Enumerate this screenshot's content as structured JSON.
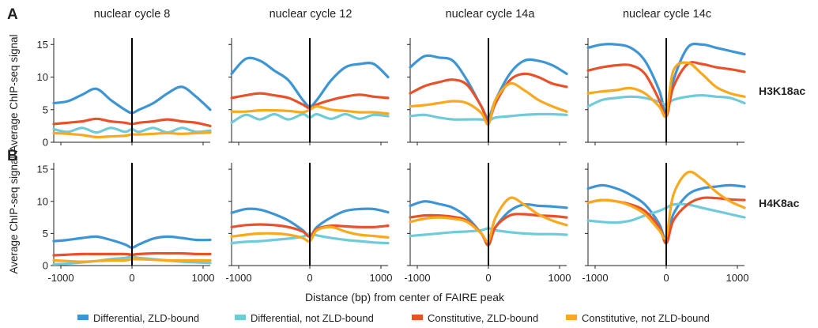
{
  "panel_letters": [
    "A",
    "B"
  ],
  "columns": [
    "nuclear cycle 8",
    "nuclear cycle 12",
    "nuclear cycle 14a",
    "nuclear cycle 14c"
  ],
  "rows": [
    "H3K18ac",
    "H4K8ac"
  ],
  "ylabel": "Average ChIP-seq signal",
  "xlabel": "Distance (bp) from center of FAIRE peak",
  "colors": {
    "differential_zld": "#3d95d4",
    "differential_not_zld": "#6fcbd9",
    "constitutive_zld": "#e8512a",
    "constitutive_not_zld": "#f9a81f",
    "axis": "#222222",
    "center_line": "#000000"
  },
  "chart_data": {
    "type": "line",
    "layout": "grid 2 rows x 4 columns, shared axes",
    "x_ticks": [
      -1000,
      0,
      1000
    ],
    "xlim": [
      -1100,
      1100
    ],
    "y_ticks": [
      0,
      5,
      10,
      15
    ],
    "ylim": [
      0,
      16
    ],
    "legend": "bottom",
    "grid": false,
    "vertical_marker_at_x": 0,
    "series_names": [
      "Differential, ZLD-bound",
      "Differential, not ZLD-bound",
      "Constitutive, ZLD-bound",
      "Constitutive, not ZLD-bound"
    ],
    "x": [
      -1100,
      -900,
      -700,
      -500,
      -300,
      -100,
      0,
      100,
      300,
      500,
      700,
      900,
      1100
    ],
    "panels": [
      {
        "row": "H3K18ac",
        "column": "nuclear cycle 8",
        "series": [
          {
            "name": "Differential, ZLD-bound",
            "values": [
              6,
              6.3,
              7.3,
              8.2,
              6.5,
              5,
              4.5,
              5,
              6,
              7.5,
              8.5,
              7,
              5
            ]
          },
          {
            "name": "Differential, not ZLD-bound",
            "values": [
              2,
              1.6,
              2.2,
              1.5,
              2.2,
              1.6,
              2,
              1.6,
              2.2,
              1.5,
              2.2,
              1.6,
              1.8
            ]
          },
          {
            "name": "Constitutive, ZLD-bound",
            "values": [
              2.8,
              3,
              3.2,
              3.6,
              3.2,
              3,
              2.8,
              3,
              3.2,
              3.5,
              3.2,
              3,
              2.5
            ]
          },
          {
            "name": "Constitutive, not ZLD-bound",
            "values": [
              1.4,
              1.3,
              1.1,
              0.8,
              0.9,
              1,
              1.2,
              1.2,
              1.3,
              1.4,
              1.3,
              1.4,
              1.5
            ]
          }
        ]
      },
      {
        "row": "H3K18ac",
        "column": "nuclear cycle 12",
        "series": [
          {
            "name": "Differential, ZLD-bound",
            "values": [
              10.5,
              12.8,
              12.5,
              11,
              9.5,
              6.5,
              5.5,
              6.5,
              9.5,
              11.5,
              12,
              12,
              10
            ]
          },
          {
            "name": "Differential, not ZLD-bound",
            "values": [
              3,
              4.2,
              3.5,
              4.3,
              3.5,
              4.3,
              3.8,
              4.3,
              3.6,
              4.3,
              3.6,
              4.2,
              4
            ]
          },
          {
            "name": "Constitutive, ZLD-bound",
            "values": [
              6.8,
              7.2,
              7.5,
              7.2,
              6.8,
              5.8,
              5.2,
              5.8,
              6.5,
              7,
              7.3,
              7,
              6.8
            ]
          },
          {
            "name": "Constitutive, not ZLD-bound",
            "values": [
              4.7,
              4.7,
              4.9,
              4.9,
              4.8,
              4.6,
              5,
              5.5,
              5,
              4.8,
              4.6,
              4.6,
              4.4
            ]
          }
        ]
      },
      {
        "row": "H3K18ac",
        "column": "nuclear cycle 14a",
        "series": [
          {
            "name": "Differential, ZLD-bound",
            "values": [
              11.5,
              13.2,
              13,
              12.5,
              9.5,
              5.5,
              3.8,
              6.5,
              10.5,
              12.5,
              12.5,
              11.8,
              10.5
            ]
          },
          {
            "name": "Differential, not ZLD-bound",
            "values": [
              4,
              4.2,
              3.8,
              3.5,
              3.5,
              3.5,
              3.3,
              3.8,
              4,
              4.2,
              4.3,
              4.3,
              4.2
            ]
          },
          {
            "name": "Constitutive, ZLD-bound",
            "values": [
              7.5,
              8.6,
              9.2,
              9.6,
              8.8,
              5.5,
              3.2,
              6,
              9.5,
              10.5,
              10,
              9,
              8.5
            ]
          },
          {
            "name": "Constitutive, not ZLD-bound",
            "values": [
              5.5,
              5.7,
              6,
              6.3,
              6,
              4.5,
              2.8,
              6.5,
              9,
              8,
              6.5,
              5.5,
              4.7
            ]
          }
        ]
      },
      {
        "row": "H3K18ac",
        "column": "nuclear cycle 14c",
        "series": [
          {
            "name": "Differential, ZLD-bound",
            "values": [
              14.5,
              15,
              15,
              14.5,
              12.5,
              8,
              4.5,
              9.5,
              14.5,
              15,
              14.5,
              14,
              13.5
            ]
          },
          {
            "name": "Differential, not ZLD-bound",
            "values": [
              5.5,
              6.5,
              6.8,
              7,
              6.8,
              6.2,
              5.8,
              6.5,
              7,
              7.2,
              7,
              6.8,
              6
            ]
          },
          {
            "name": "Constitutive, ZLD-bound",
            "values": [
              11,
              11.5,
              11.8,
              11.8,
              10.5,
              6.5,
              4,
              8.5,
              12,
              12,
              11.5,
              11.2,
              10.8
            ]
          },
          {
            "name": "Constitutive, not ZLD-bound",
            "values": [
              7.5,
              7.8,
              8,
              8.3,
              7.5,
              5.5,
              4.2,
              11,
              12.2,
              10.5,
              8.5,
              7.5,
              7
            ]
          }
        ]
      },
      {
        "row": "H4K8ac",
        "column": "nuclear cycle 8",
        "series": [
          {
            "name": "Differential, ZLD-bound",
            "values": [
              3.8,
              4,
              4.3,
              4.5,
              4,
              3.3,
              2.8,
              3.3,
              4.2,
              4.5,
              4.3,
              4,
              4
            ]
          },
          {
            "name": "Differential, not ZLD-bound",
            "values": [
              0.2,
              0.3,
              0.5,
              0.7,
              1,
              1.2,
              1.4,
              1.2,
              1,
              0.8,
              0.6,
              0.5,
              0.4
            ]
          },
          {
            "name": "Constitutive, ZLD-bound",
            "values": [
              1.6,
              1.7,
              1.8,
              1.8,
              1.8,
              1.8,
              1.7,
              1.8,
              1.9,
              1.9,
              1.9,
              1.8,
              1.8
            ]
          },
          {
            "name": "Constitutive, not ZLD-bound",
            "values": [
              0.8,
              0.7,
              0.6,
              0.7,
              0.8,
              0.8,
              1,
              1,
              0.9,
              0.8,
              0.8,
              0.8,
              0.8
            ]
          }
        ]
      },
      {
        "row": "H4K8ac",
        "column": "nuclear cycle 12",
        "series": [
          {
            "name": "Differential, ZLD-bound",
            "values": [
              8.2,
              8.8,
              8.7,
              8,
              7,
              5.5,
              4.5,
              6,
              7.5,
              8.5,
              8.8,
              8.8,
              8.3
            ]
          },
          {
            "name": "Differential, not ZLD-bound",
            "values": [
              3.5,
              3.7,
              3.8,
              4,
              4.2,
              4.5,
              5,
              4.7,
              4.3,
              4,
              3.8,
              3.6,
              3.5
            ]
          },
          {
            "name": "Constitutive, ZLD-bound",
            "values": [
              6,
              6.3,
              6.4,
              6.3,
              6,
              5.3,
              4.5,
              5.7,
              6.2,
              6.1,
              6,
              6,
              6.2
            ]
          },
          {
            "name": "Constitutive, not ZLD-bound",
            "values": [
              4.5,
              4.8,
              5,
              5,
              4.8,
              4.3,
              3.8,
              5.5,
              6,
              5.3,
              4.8,
              4.6,
              4.4
            ]
          }
        ]
      },
      {
        "row": "H4K8ac",
        "column": "nuclear cycle 14a",
        "series": [
          {
            "name": "Differential, ZLD-bound",
            "values": [
              9.3,
              10,
              9.6,
              9,
              7.5,
              5,
              3.5,
              6,
              8.5,
              9.5,
              9.3,
              9.2,
              9
            ]
          },
          {
            "name": "Differential, not ZLD-bound",
            "values": [
              4.6,
              4.8,
              5,
              5.2,
              5.3,
              5.5,
              5.8,
              5.5,
              5.2,
              5,
              4.9,
              4.9,
              4.8
            ]
          },
          {
            "name": "Constitutive, ZLD-bound",
            "values": [
              7.5,
              7.8,
              7.8,
              7.6,
              7,
              5,
              3.2,
              6,
              7.8,
              8,
              7.8,
              7.7,
              7.5
            ]
          },
          {
            "name": "Constitutive, not ZLD-bound",
            "values": [
              6.8,
              7.3,
              7.5,
              7.3,
              6.8,
              5,
              3.8,
              7.5,
              10.5,
              9.5,
              8,
              7,
              6.3
            ]
          }
        ]
      },
      {
        "row": "H4K8ac",
        "column": "nuclear cycle 14c",
        "series": [
          {
            "name": "Differential, ZLD-bound",
            "values": [
              12,
              12.5,
              12,
              11,
              9.5,
              6.5,
              4,
              8,
              11,
              12,
              12.3,
              12.5,
              12.3
            ]
          },
          {
            "name": "Differential, not ZLD-bound",
            "values": [
              7,
              6.8,
              6.7,
              7,
              7.8,
              8.5,
              9,
              9.5,
              9.5,
              9,
              8.5,
              8,
              7.5
            ]
          },
          {
            "name": "Constitutive, ZLD-bound",
            "values": [
              9.8,
              10.2,
              10,
              9.5,
              8.5,
              6,
              3.5,
              7,
              9.5,
              10.5,
              10.5,
              10.3,
              10.2
            ]
          },
          {
            "name": "Constitutive, not ZLD-bound",
            "values": [
              9.8,
              10.2,
              10,
              9.3,
              8,
              5.5,
              4.5,
              11,
              14.5,
              13.5,
              11.5,
              10,
              9
            ]
          }
        ]
      }
    ]
  }
}
